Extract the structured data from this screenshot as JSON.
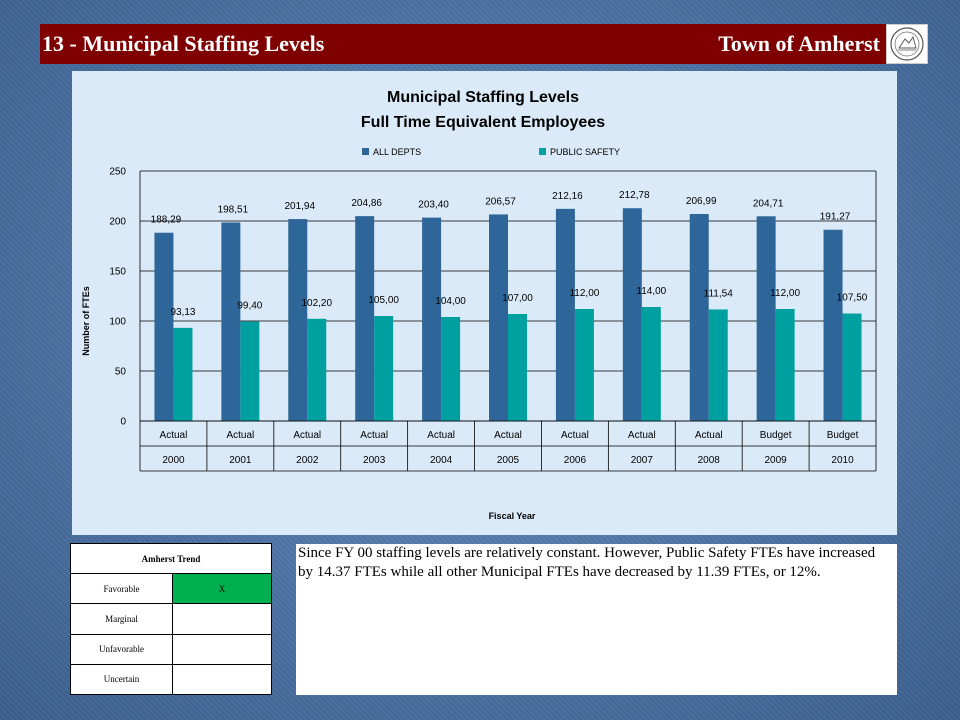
{
  "header": {
    "title": "13 - Municipal Staffing Levels",
    "org": "Town of Amherst",
    "seal_icon": "town-seal-icon"
  },
  "colors": {
    "header_bg": "#7f0000",
    "all_depts": "#2f6699",
    "public_safety": "#00a0a0",
    "favorable": "#00b050",
    "chart_bg": "#dbeaf8"
  },
  "chart_data": {
    "type": "bar",
    "title": "Municipal Staffing Levels",
    "subtitle": "Full Time Equivalent Employees",
    "xlabel": "Fiscal Year",
    "ylabel": "Number of FTEs",
    "ylim": [
      0,
      250
    ],
    "yticks": [
      0,
      50,
      100,
      150,
      200,
      250
    ],
    "grid": true,
    "legend": "top",
    "categories": [
      [
        "Actual",
        "2000"
      ],
      [
        "Actual",
        "2001"
      ],
      [
        "Actual",
        "2002"
      ],
      [
        "Actual",
        "2003"
      ],
      [
        "Actual",
        "2004"
      ],
      [
        "Actual",
        "2005"
      ],
      [
        "Actual",
        "2006"
      ],
      [
        "Actual",
        "2007"
      ],
      [
        "Actual",
        "2008"
      ],
      [
        "Budget",
        "2009"
      ],
      [
        "Budget",
        "2010"
      ]
    ],
    "series": [
      {
        "name": "ALL DEPTS",
        "values": [
          188.29,
          198.51,
          201.94,
          204.86,
          203.4,
          206.57,
          212.16,
          212.78,
          206.99,
          204.71,
          191.27
        ],
        "labels": [
          "188,29",
          "198,51",
          "201,94",
          "204,86",
          "203,40",
          "206,57",
          "212,16",
          "212,78",
          "206,99",
          "204,71",
          "191,27"
        ]
      },
      {
        "name": "PUBLIC SAFETY",
        "values": [
          93.13,
          99.4,
          102.2,
          105.0,
          104.0,
          107.0,
          112.0,
          114.0,
          111.54,
          112.0,
          107.5
        ],
        "labels": [
          "93,13",
          "99,40",
          "102,20",
          "105,00",
          "104,00",
          "107,00",
          "112,00",
          "114,00",
          "111,54",
          "112,00",
          "107,50"
        ]
      }
    ]
  },
  "trend": {
    "heading": "Amherst Trend",
    "rows": [
      {
        "label": "Favorable",
        "mark": "X"
      },
      {
        "label": "Marginal",
        "mark": ""
      },
      {
        "label": "Unfavorable",
        "mark": ""
      },
      {
        "label": "Uncertain",
        "mark": ""
      }
    ]
  },
  "note": {
    "text": "Since FY 00 staffing levels are relatively constant.  However, Public Safety FTEs have increased by 14.37 FTEs while all other Municipal FTEs have decreased by 11.39 FTEs, or 12%."
  }
}
